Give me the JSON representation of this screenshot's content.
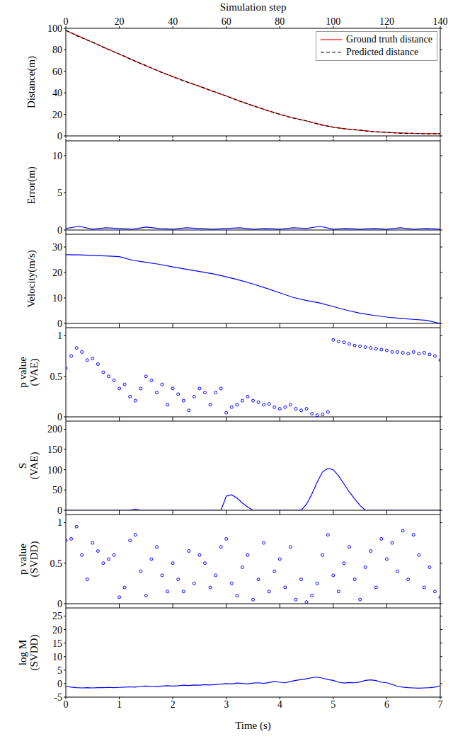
{
  "chart_data": [
    {
      "type": "line",
      "x": [
        0,
        0.25,
        0.5,
        0.75,
        1,
        1.25,
        1.5,
        1.75,
        2,
        2.25,
        2.5,
        2.75,
        3,
        3.25,
        3.5,
        3.75,
        4,
        4.25,
        4.5,
        4.75,
        5,
        5.25,
        5.5,
        5.75,
        6,
        6.25,
        6.5,
        6.75,
        7
      ],
      "series": [
        {
          "name": "Ground truth distance",
          "color": "#ff0000",
          "line_style": "solid",
          "values": [
            98,
            92.5,
            87,
            81.5,
            76,
            70.5,
            65,
            60,
            55,
            50.5,
            46,
            41.5,
            37,
            32.5,
            28,
            24,
            20,
            16.8,
            13.8,
            10.8,
            8,
            6.5,
            5.2,
            4,
            3.2,
            2.7,
            2.3,
            2.1,
            2
          ]
        },
        {
          "name": "Predicted distance",
          "color": "#000000",
          "line_style": "dashed",
          "values": [
            98.2,
            92,
            87.1,
            81.2,
            76.2,
            70.4,
            65.4,
            59.8,
            55.1,
            50.2,
            46.2,
            41.4,
            37.2,
            32.2,
            28.1,
            23.8,
            20.1,
            16.5,
            14,
            10.3,
            8.1,
            6.3,
            5.3,
            3.8,
            3.3,
            2.4,
            2.4,
            1.9,
            2.1
          ]
        }
      ],
      "xlim": [
        0,
        7
      ],
      "xticks": [
        0,
        1,
        2,
        3,
        4,
        5,
        6,
        7
      ],
      "x2lim": [
        0,
        140
      ],
      "x2ticks": [
        0,
        20,
        40,
        60,
        80,
        100,
        120,
        140
      ],
      "x2label": "Simulation step",
      "ylim": [
        0,
        100
      ],
      "yticks": [
        0,
        20,
        40,
        60,
        80,
        100
      ],
      "ylabel": [
        "Distance(m)"
      ],
      "legend": "upper right",
      "tick_labels": "y"
    },
    {
      "type": "line",
      "x": [
        0,
        0.25,
        0.5,
        0.75,
        1,
        1.25,
        1.5,
        1.75,
        2,
        2.25,
        2.5,
        2.75,
        3,
        3.25,
        3.5,
        3.75,
        4,
        4.25,
        4.5,
        4.75,
        5,
        5.25,
        5.5,
        5.75,
        6,
        6.25,
        6.5,
        6.75,
        7
      ],
      "series": [
        {
          "color": "#0000ff",
          "values": [
            0.2,
            0.5,
            0.1,
            0.3,
            0.2,
            0.1,
            0.4,
            0.2,
            0.1,
            0.3,
            0.2,
            0.1,
            0.2,
            0.3,
            0.1,
            0.2,
            0.1,
            0.3,
            0.2,
            0.5,
            0.1,
            0.2,
            0.1,
            0.2,
            0.1,
            0.3,
            0.1,
            0.2,
            0.1
          ]
        }
      ],
      "xlim": [
        0,
        7
      ],
      "xticks": [
        0,
        1,
        2,
        3,
        4,
        5,
        6,
        7
      ],
      "ylim": [
        0,
        12
      ],
      "yticks": [
        0,
        5,
        10
      ],
      "ylabel": [
        "Error(m)"
      ],
      "tick_labels": "y"
    },
    {
      "type": "line",
      "x": [
        0,
        0.25,
        0.5,
        0.75,
        1,
        1.25,
        1.5,
        1.75,
        2,
        2.25,
        2.5,
        2.75,
        3,
        3.25,
        3.5,
        3.75,
        4,
        4.25,
        4.5,
        4.75,
        5,
        5.25,
        5.5,
        5.75,
        6,
        6.25,
        6.5,
        6.75,
        7
      ],
      "series": [
        {
          "color": "#0000ff",
          "values": [
            27,
            26.9,
            26.7,
            26.5,
            26.2,
            24.8,
            24,
            23.2,
            22.2,
            21.3,
            20.4,
            19.5,
            18.3,
            17,
            15.5,
            13.8,
            12,
            10.2,
            9,
            8,
            6.6,
            5.2,
            4,
            3.2,
            2.5,
            2,
            1.6,
            1.2,
            0
          ]
        }
      ],
      "xlim": [
        0,
        7
      ],
      "xticks": [
        0,
        1,
        2,
        3,
        4,
        5,
        6,
        7
      ],
      "ylim": [
        0,
        35
      ],
      "yticks": [
        0,
        10,
        20,
        30
      ],
      "ylabel": [
        "Velocity(m/s)"
      ],
      "tick_labels": "y"
    },
    {
      "type": "scatter",
      "x": [
        0,
        0.1,
        0.2,
        0.3,
        0.4,
        0.5,
        0.6,
        0.7,
        0.8,
        0.9,
        1,
        1.1,
        1.2,
        1.3,
        1.4,
        1.5,
        1.6,
        1.7,
        1.8,
        1.9,
        2,
        2.1,
        2.2,
        2.3,
        2.4,
        2.5,
        2.6,
        2.7,
        2.8,
        2.9,
        3,
        3.1,
        3.2,
        3.3,
        3.4,
        3.5,
        3.6,
        3.7,
        3.8,
        3.9,
        4,
        4.1,
        4.2,
        4.3,
        4.4,
        4.5,
        4.6,
        4.7,
        4.8,
        4.9,
        5,
        5.1,
        5.2,
        5.3,
        5.4,
        5.5,
        5.6,
        5.7,
        5.8,
        5.9,
        6,
        6.1,
        6.2,
        6.3,
        6.4,
        6.5,
        6.6,
        6.7,
        6.8,
        6.9,
        7
      ],
      "series": [
        {
          "color": "#0000ff",
          "marker": "o",
          "values": [
            0.6,
            0.75,
            0.85,
            0.8,
            0.7,
            0.72,
            0.65,
            0.55,
            0.5,
            0.45,
            0.35,
            0.4,
            0.25,
            0.2,
            0.35,
            0.5,
            0.45,
            0.3,
            0.4,
            0.15,
            0.35,
            0.28,
            0.2,
            0.08,
            0.25,
            0.35,
            0.3,
            0.15,
            0.3,
            0.35,
            0.05,
            0.12,
            0.15,
            0.2,
            0.25,
            0.2,
            0.18,
            0.15,
            0.16,
            0.12,
            0.1,
            0.12,
            0.15,
            0.1,
            0.08,
            0.1,
            0.04,
            0.02,
            0.03,
            0.06,
            0.95,
            0.93,
            0.92,
            0.9,
            0.88,
            0.87,
            0.86,
            0.85,
            0.84,
            0.83,
            0.82,
            0.8,
            0.8,
            0.79,
            0.78,
            0.8,
            0.78,
            0.79,
            0.77,
            0.75,
            0.7
          ]
        }
      ],
      "xlim": [
        0,
        7
      ],
      "xticks": [
        0,
        1,
        2,
        3,
        4,
        5,
        6,
        7
      ],
      "ylim": [
        0,
        1.1
      ],
      "yticks": [
        0,
        0.5,
        1
      ],
      "ylabel": [
        "p value",
        "(VAE)"
      ],
      "tick_labels": "y"
    },
    {
      "type": "line",
      "x": [
        0,
        0.1,
        0.2,
        0.3,
        0.4,
        0.5,
        0.6,
        0.7,
        0.8,
        0.9,
        1,
        1.1,
        1.2,
        1.3,
        1.4,
        1.5,
        1.6,
        1.7,
        1.8,
        1.9,
        2,
        2.1,
        2.2,
        2.3,
        2.4,
        2.5,
        2.6,
        2.7,
        2.8,
        2.9,
        3,
        3.1,
        3.2,
        3.3,
        3.4,
        3.5,
        3.6,
        3.7,
        3.8,
        3.9,
        4,
        4.1,
        4.2,
        4.3,
        4.4,
        4.5,
        4.6,
        4.7,
        4.8,
        4.9,
        5,
        5.1,
        5.2,
        5.3,
        5.4,
        5.5,
        5.6,
        5.7,
        5.8,
        5.9,
        6,
        6.1,
        6.2,
        6.3,
        6.4,
        6.5,
        6.6,
        6.7,
        6.8,
        6.9,
        7
      ],
      "series": [
        {
          "color": "#0000ff",
          "values": [
            0,
            0,
            0,
            0,
            0,
            0,
            0,
            0,
            0,
            0,
            0,
            0,
            0,
            3,
            0,
            0,
            0,
            0,
            0,
            0,
            0,
            0,
            0,
            0,
            0,
            0,
            0,
            0,
            0,
            0,
            35,
            38,
            30,
            18,
            8,
            0,
            0,
            0,
            0,
            0,
            0,
            0,
            0,
            0,
            0,
            15,
            40,
            70,
            95,
            103,
            100,
            85,
            65,
            45,
            28,
            12,
            0,
            0,
            0,
            0,
            0,
            0,
            0,
            0,
            0,
            0,
            0,
            0,
            0,
            0,
            0
          ]
        }
      ],
      "xlim": [
        0,
        7
      ],
      "xticks": [
        0,
        1,
        2,
        3,
        4,
        5,
        6,
        7
      ],
      "ylim": [
        0,
        220
      ],
      "yticks": [
        0,
        50,
        100,
        150,
        200
      ],
      "ylabel": [
        "S",
        "(VAE)"
      ],
      "tick_labels": "y"
    },
    {
      "type": "scatter",
      "x": [
        0,
        0.1,
        0.2,
        0.3,
        0.4,
        0.5,
        0.6,
        0.7,
        0.8,
        0.9,
        1,
        1.1,
        1.2,
        1.3,
        1.4,
        1.5,
        1.6,
        1.7,
        1.8,
        1.9,
        2,
        2.1,
        2.2,
        2.3,
        2.4,
        2.5,
        2.6,
        2.7,
        2.8,
        2.9,
        3,
        3.1,
        3.2,
        3.3,
        3.4,
        3.5,
        3.6,
        3.7,
        3.8,
        3.9,
        4,
        4.1,
        4.2,
        4.3,
        4.4,
        4.5,
        4.6,
        4.7,
        4.8,
        4.9,
        5,
        5.1,
        5.2,
        5.3,
        5.4,
        5.5,
        5.6,
        5.7,
        5.8,
        5.9,
        6,
        6.1,
        6.2,
        6.3,
        6.4,
        6.5,
        6.6,
        6.7,
        6.8,
        6.9,
        7
      ],
      "series": [
        {
          "color": "#0000ff",
          "marker": "o",
          "values": [
            0.78,
            0.8,
            0.95,
            0.6,
            0.3,
            0.75,
            0.65,
            0.5,
            0.55,
            0.6,
            0.08,
            0.2,
            0.78,
            0.85,
            0.4,
            0.1,
            0.55,
            0.7,
            0.35,
            0.15,
            0.5,
            0.3,
            0.15,
            0.65,
            0.25,
            0.6,
            0.5,
            0.2,
            0.35,
            0.7,
            0.8,
            0.25,
            0.1,
            0.45,
            0.6,
            0.05,
            0.3,
            0.75,
            0.15,
            0.4,
            0.55,
            0.2,
            0.7,
            0.05,
            0.3,
            0.02,
            0.1,
            0.25,
            0.6,
            0.85,
            0.35,
            0.15,
            0.5,
            0.7,
            0.3,
            0.05,
            0.45,
            0.65,
            0.2,
            0.8,
            0.55,
            0.75,
            0.4,
            0.9,
            0.3,
            0.85,
            0.6,
            0.2,
            0.45,
            0.15,
            0.08
          ]
        }
      ],
      "xlim": [
        0,
        7
      ],
      "xticks": [
        0,
        1,
        2,
        3,
        4,
        5,
        6,
        7
      ],
      "ylim": [
        0,
        1.1
      ],
      "yticks": [
        0,
        0.5,
        1
      ],
      "ylabel": [
        "p value",
        "(SVDD)"
      ],
      "tick_labels": "y"
    },
    {
      "type": "line",
      "x": [
        0,
        0.1,
        0.2,
        0.3,
        0.4,
        0.5,
        0.6,
        0.7,
        0.8,
        0.9,
        1,
        1.1,
        1.2,
        1.3,
        1.4,
        1.5,
        1.6,
        1.7,
        1.8,
        1.9,
        2,
        2.1,
        2.2,
        2.3,
        2.4,
        2.5,
        2.6,
        2.7,
        2.8,
        2.9,
        3,
        3.1,
        3.2,
        3.3,
        3.4,
        3.5,
        3.6,
        3.7,
        3.8,
        3.9,
        4,
        4.1,
        4.2,
        4.3,
        4.4,
        4.5,
        4.6,
        4.7,
        4.8,
        4.9,
        5,
        5.1,
        5.2,
        5.3,
        5.4,
        5.5,
        5.6,
        5.7,
        5.8,
        5.9,
        6,
        6.1,
        6.2,
        6.3,
        6.4,
        6.5,
        6.6,
        6.7,
        6.8,
        6.9,
        7
      ],
      "series": [
        {
          "color": "#0000ff",
          "values": [
            -1,
            -1.3,
            -1.5,
            -1.6,
            -1.5,
            -1.6,
            -1.5,
            -1.5,
            -1.4,
            -1.5,
            -1.4,
            -1.3,
            -1.2,
            -1.3,
            -1,
            -0.9,
            -1,
            -1.1,
            -0.9,
            -0.8,
            -0.9,
            -0.8,
            -0.6,
            -0.7,
            -0.5,
            -0.6,
            -0.4,
            -0.5,
            -0.3,
            -0.2,
            0,
            -0.1,
            0.2,
            0.1,
            -0.1,
            0.2,
            0.3,
            0.1,
            0.4,
            0.8,
            0.5,
            0.3,
            0.8,
            1.2,
            1.5,
            1.8,
            2.2,
            2.4,
            2,
            1.5,
            1.2,
            0.5,
            0.2,
            0.4,
            0.3,
            0.6,
            1.2,
            1.4,
            1.1,
            0.5,
            0.3,
            -0.3,
            -1,
            -1.3,
            -1.5,
            -1.6,
            -1.7,
            -1.6,
            -1.5,
            -1.3,
            -0.8
          ]
        }
      ],
      "xlim": [
        0,
        7
      ],
      "xticks": [
        0,
        1,
        2,
        3,
        4,
        5,
        6,
        7
      ],
      "xlabel": "Time (s)",
      "ylim": [
        -5,
        28
      ],
      "yticks": [
        -5,
        0,
        5,
        10,
        15,
        20,
        25
      ],
      "ylabel": [
        "log M",
        "(SVDD)"
      ]
    }
  ]
}
